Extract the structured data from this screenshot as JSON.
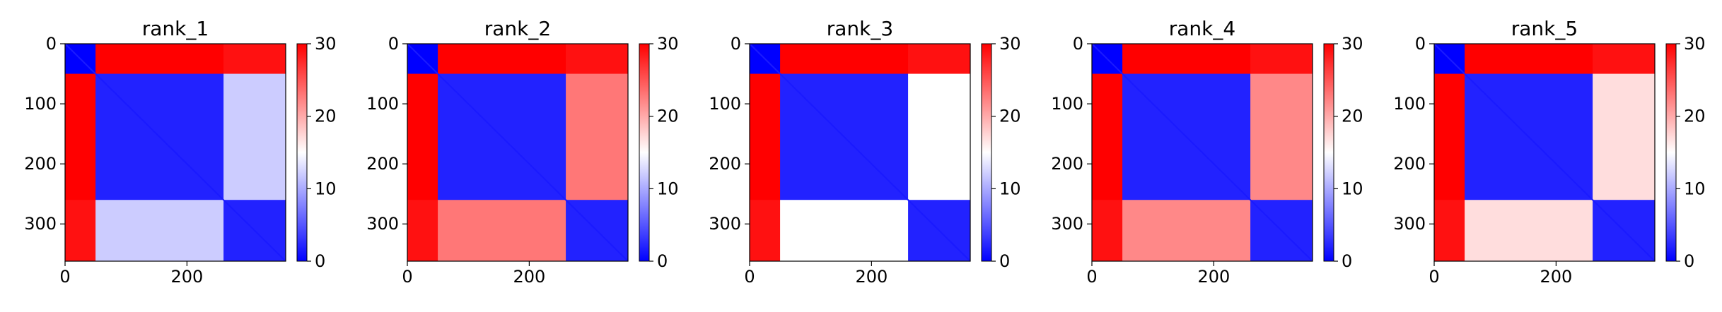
{
  "chart_data": [
    {
      "type": "heatmap",
      "title": "rank_1",
      "x_ticks": [
        0,
        200
      ],
      "y_ticks": [
        0,
        100,
        200,
        300
      ],
      "xlim": [
        0,
        362
      ],
      "ylim": [
        362,
        0
      ],
      "colorbar": {
        "ticks": [
          0,
          10,
          20,
          30
        ],
        "range": [
          0,
          30
        ],
        "colormap": "bwr"
      },
      "matrix_size": 362,
      "domain_boundaries": [
        0,
        50,
        260,
        362
      ],
      "block_levels": [
        [
          0,
          30,
          29
        ],
        [
          30,
          2,
          12
        ],
        [
          29,
          12,
          2
        ]
      ]
    },
    {
      "type": "heatmap",
      "title": "rank_2",
      "x_ticks": [
        0,
        200
      ],
      "y_ticks": [
        0,
        100,
        200,
        300
      ],
      "xlim": [
        0,
        362
      ],
      "ylim": [
        362,
        0
      ],
      "colorbar": {
        "ticks": [
          0,
          10,
          20,
          30
        ],
        "range": [
          0,
          30
        ],
        "colormap": "bwr"
      },
      "matrix_size": 362,
      "domain_boundaries": [
        0,
        50,
        260,
        362
      ],
      "block_levels": [
        [
          0,
          30,
          29
        ],
        [
          30,
          2,
          23
        ],
        [
          29,
          23,
          2
        ]
      ]
    },
    {
      "type": "heatmap",
      "title": "rank_3",
      "x_ticks": [
        0,
        200
      ],
      "y_ticks": [
        0,
        100,
        200,
        300
      ],
      "xlim": [
        0,
        362
      ],
      "ylim": [
        362,
        0
      ],
      "colorbar": {
        "ticks": [
          0,
          10,
          20,
          30
        ],
        "range": [
          0,
          30
        ],
        "colormap": "bwr"
      },
      "matrix_size": 362,
      "domain_boundaries": [
        0,
        50,
        260,
        362
      ],
      "block_levels": [
        [
          0,
          30,
          29
        ],
        [
          30,
          2,
          15
        ],
        [
          29,
          15,
          2
        ]
      ]
    },
    {
      "type": "heatmap",
      "title": "rank_4",
      "x_ticks": [
        0,
        200
      ],
      "y_ticks": [
        0,
        100,
        200,
        300
      ],
      "xlim": [
        0,
        362
      ],
      "ylim": [
        362,
        0
      ],
      "colorbar": {
        "ticks": [
          0,
          10,
          20,
          30
        ],
        "range": [
          0,
          30
        ],
        "colormap": "bwr"
      },
      "matrix_size": 362,
      "domain_boundaries": [
        0,
        50,
        260,
        362
      ],
      "block_levels": [
        [
          0,
          30,
          29
        ],
        [
          30,
          2,
          22
        ],
        [
          29,
          22,
          2
        ]
      ]
    },
    {
      "type": "heatmap",
      "title": "rank_5",
      "x_ticks": [
        0,
        200
      ],
      "y_ticks": [
        0,
        100,
        200,
        300
      ],
      "xlim": [
        0,
        362
      ],
      "ylim": [
        362,
        0
      ],
      "colorbar": {
        "ticks": [
          0,
          10,
          20,
          30
        ],
        "range": [
          0,
          30
        ],
        "colormap": "bwr"
      },
      "matrix_size": 362,
      "domain_boundaries": [
        0,
        50,
        260,
        362
      ],
      "block_levels": [
        [
          0,
          30,
          29
        ],
        [
          30,
          2,
          17
        ],
        [
          29,
          17,
          2
        ]
      ]
    }
  ]
}
